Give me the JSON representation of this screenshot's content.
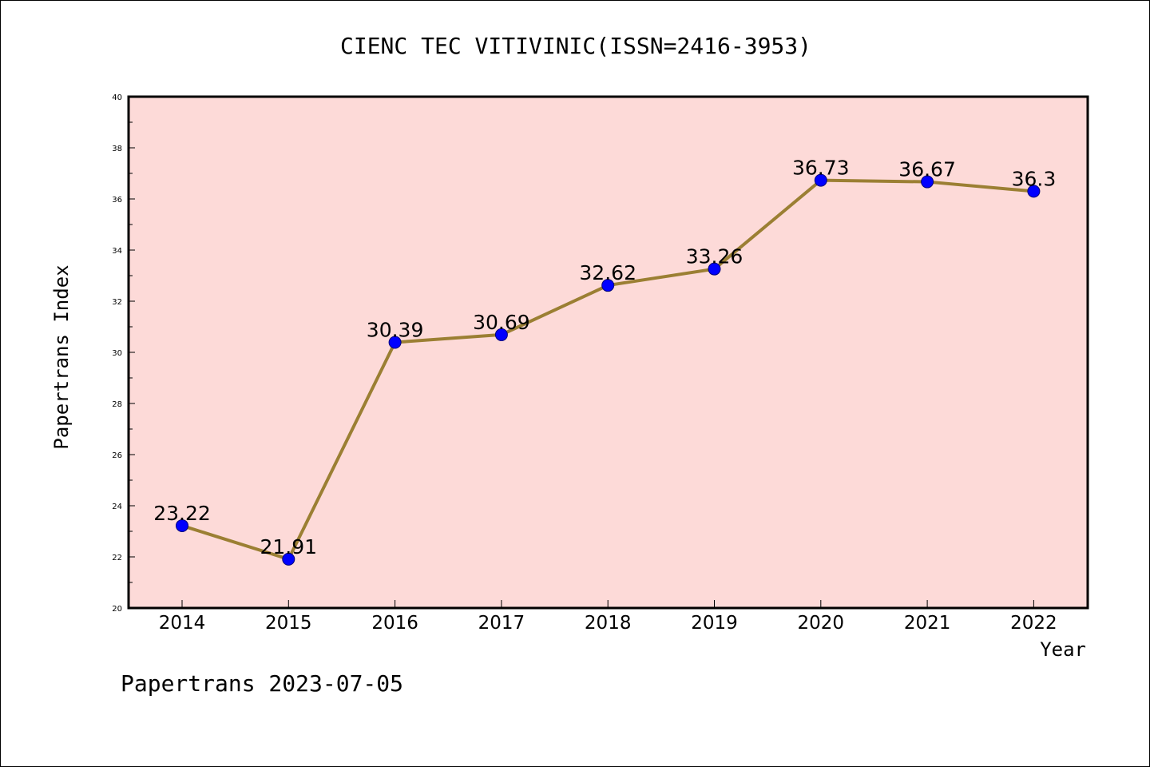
{
  "chart_data": {
    "type": "line",
    "title": "CIENC TEC VITIVINIC(ISSN=2416-3953)",
    "xlabel": "Year",
    "ylabel": "Papertrans Index",
    "categories": [
      "2014",
      "2015",
      "2016",
      "2017",
      "2018",
      "2019",
      "2020",
      "2021",
      "2022"
    ],
    "series": [
      {
        "values": [
          23.22,
          21.91,
          30.39,
          30.69,
          32.62,
          33.26,
          36.73,
          36.67,
          36.3
        ],
        "labels": [
          "23.22",
          "21.91",
          "30.39",
          "30.69",
          "32.62",
          "33.26",
          "36.73",
          "36.67",
          "36.3"
        ]
      }
    ],
    "ylim": [
      20,
      40
    ],
    "yticks": [
      "20",
      "22",
      "24",
      "26",
      "28",
      "30",
      "32",
      "34",
      "36",
      "38",
      "40"
    ],
    "grid": false,
    "legend": "none"
  },
  "footer": "Papertrans 2023-07-05",
  "colors": {
    "plot_background": "#FDDAD8",
    "line": "#9B7F33",
    "marker": "#0000FF",
    "axis": "#000000"
  }
}
